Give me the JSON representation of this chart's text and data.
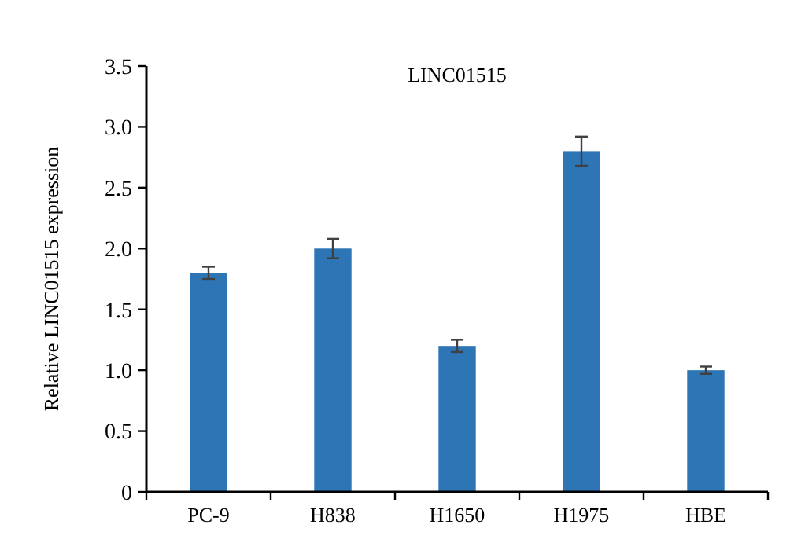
{
  "chart_data": {
    "type": "bar",
    "title": "LINC01515",
    "ylabel": "Relative LINC01515 expression",
    "categories": [
      "PC-9",
      "H838",
      "H1650",
      "H1975",
      "HBE"
    ],
    "values": [
      1.8,
      2.0,
      1.2,
      2.8,
      1.0
    ],
    "errors": [
      0.05,
      0.08,
      0.05,
      0.12,
      0.03
    ],
    "color": "#2e75b6",
    "ylim": [
      0,
      3.5
    ],
    "yticks": [
      {
        "value": 0,
        "label": "0"
      },
      {
        "value": 0.5,
        "label": "0.5"
      },
      {
        "value": 1,
        "label": "1.0"
      },
      {
        "value": 1.5,
        "label": "1.5"
      },
      {
        "value": 2,
        "label": "2.0"
      },
      {
        "value": 2.5,
        "label": "2.5"
      },
      {
        "value": 3,
        "label": "3.0"
      },
      {
        "value": 3.5,
        "label": "3.5"
      }
    ],
    "grid": false
  }
}
